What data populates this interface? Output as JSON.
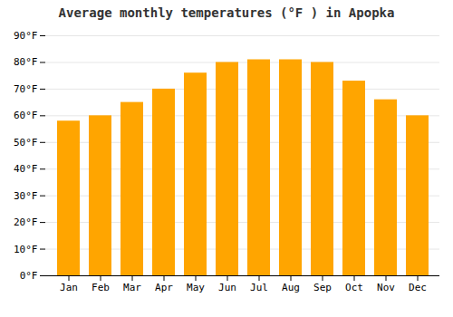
{
  "chart_data": {
    "type": "bar",
    "title": "Average monthly temperatures (°F ) in Apopka",
    "categories": [
      "Jan",
      "Feb",
      "Mar",
      "Apr",
      "May",
      "Jun",
      "Jul",
      "Aug",
      "Sep",
      "Oct",
      "Nov",
      "Dec"
    ],
    "values": [
      58,
      60,
      65,
      70,
      76,
      80,
      81,
      81,
      80,
      73,
      66,
      60
    ],
    "color": "#FFA500",
    "ylim": [
      0,
      90
    ],
    "yticks": [
      {
        "value": 0,
        "label": "0°F"
      },
      {
        "value": 10,
        "label": "10°F"
      },
      {
        "value": 20,
        "label": "20°F"
      },
      {
        "value": 30,
        "label": "30°F"
      },
      {
        "value": 40,
        "label": "40°F"
      },
      {
        "value": 50,
        "label": "50°F"
      },
      {
        "value": 60,
        "label": "60°F"
      },
      {
        "value": 70,
        "label": "70°F"
      },
      {
        "value": 80,
        "label": "80°F"
      },
      {
        "value": 90,
        "label": "90°F"
      }
    ],
    "grid": true
  }
}
